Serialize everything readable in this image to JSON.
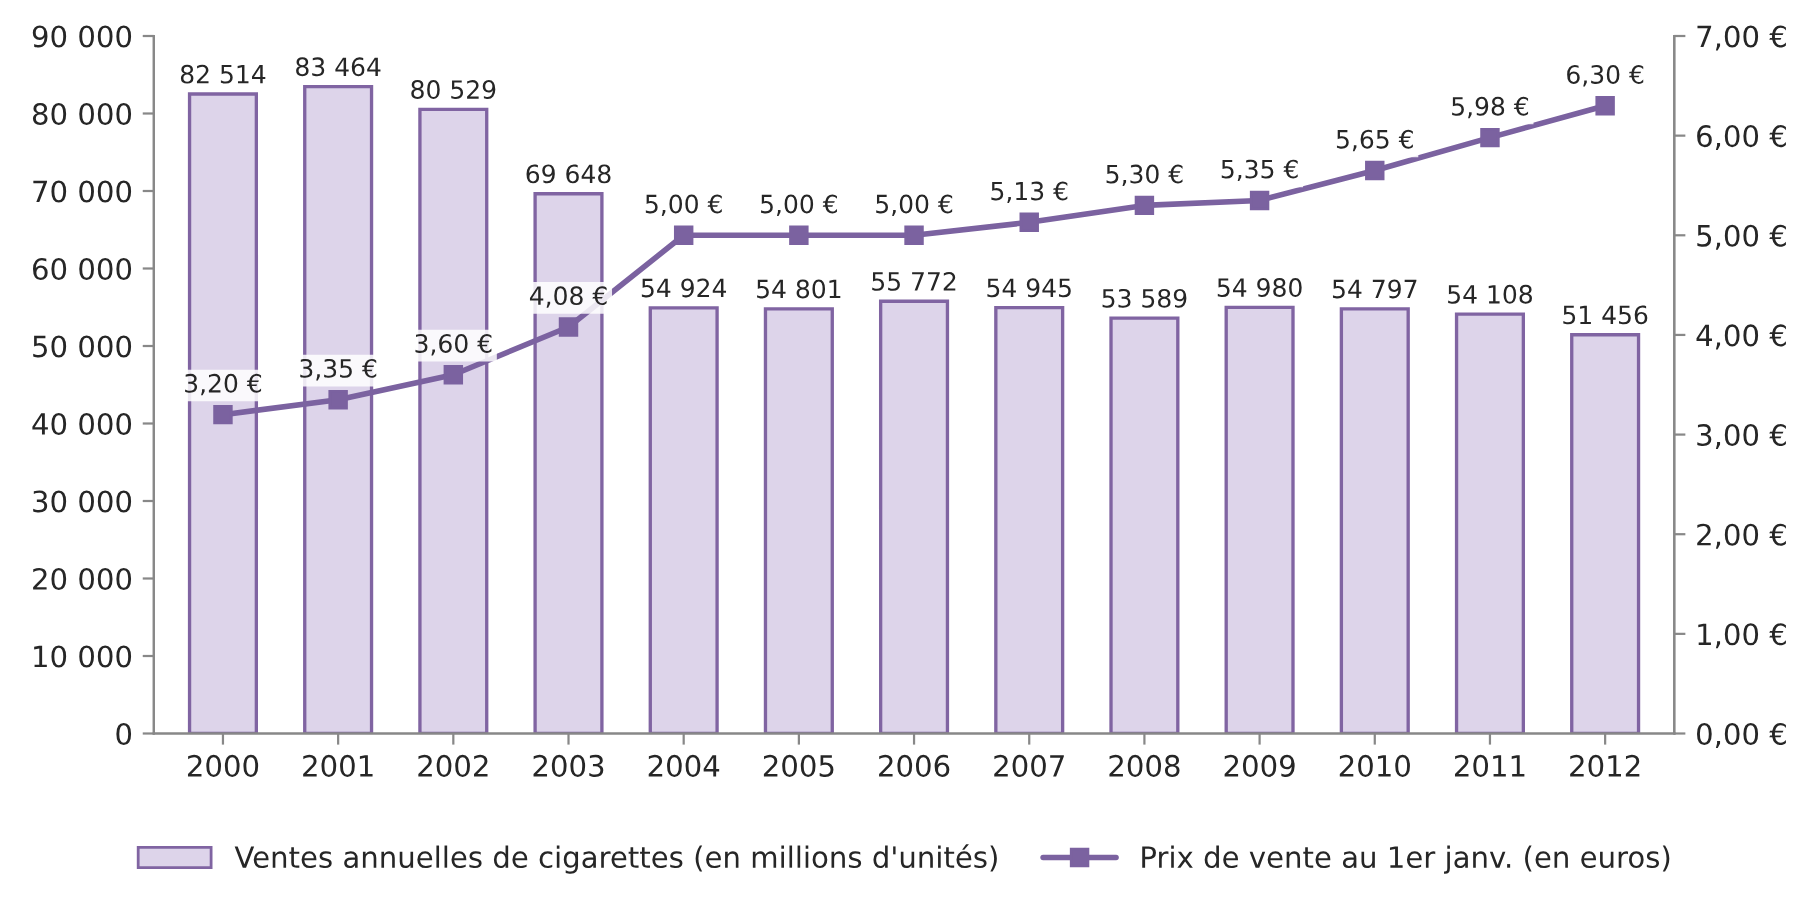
{
  "chart_data": {
    "type": "bar",
    "categories": [
      "2000",
      "2001",
      "2002",
      "2003",
      "2004",
      "2005",
      "2006",
      "2007",
      "2008",
      "2009",
      "2010",
      "2011",
      "2012"
    ],
    "series": [
      {
        "name": "Ventes annuelles de cigarettes (en millions d'unités)",
        "color": "#ddd4ea",
        "values": [
          82514,
          83464,
          80529,
          69648,
          54924,
          54801,
          55772,
          54945,
          53589,
          54980,
          54797,
          54108,
          51456
        ],
        "value_labels": [
          "82 514",
          "83 464",
          "80 529",
          "69 648",
          "54 924",
          "54 801",
          "55 772",
          "54 945",
          "53 589",
          "54 980",
          "54 797",
          "54 108",
          "51 456"
        ]
      },
      {
        "name": "Prix de vente au 1er janv. (en euros)",
        "type": "line",
        "axis": "y2",
        "color": "#7b62a0",
        "marker": "square",
        "line_style": "solid",
        "values": [
          3.2,
          3.35,
          3.6,
          4.08,
          5.0,
          5.0,
          5.0,
          5.13,
          5.3,
          5.35,
          5.65,
          5.98,
          6.3
        ],
        "value_labels": [
          "3,20 €",
          "3,35 €",
          "3,60 €",
          "4,08 €",
          "5,00 €",
          "5,00 €",
          "5,00 €",
          "5,13 €",
          "5,30 €",
          "5,35 €",
          "5,65 €",
          "5,98 €",
          "6,30 €"
        ]
      }
    ],
    "ylim": [
      0,
      90000
    ],
    "yticks": [
      0,
      {
        "value": 10000,
        "label": "10 000"
      },
      {
        "value": 20000,
        "label": "20 000"
      },
      {
        "value": 30000,
        "label": "30 000"
      },
      {
        "value": 40000,
        "label": "40 000"
      },
      {
        "value": 50000,
        "label": "50 000"
      },
      {
        "value": 60000,
        "label": "60 000"
      },
      {
        "value": 70000,
        "label": "70 000"
      },
      {
        "value": 80000,
        "label": "80 000"
      },
      {
        "value": 90000,
        "label": "90 000"
      }
    ],
    "y2lim": [
      0,
      7
    ],
    "y2ticks": [
      {
        "value": 0,
        "label": "0,00 €"
      },
      {
        "value": 1,
        "label": "1,00 €"
      },
      {
        "value": 2,
        "label": "2,00 €"
      },
      {
        "value": 3,
        "label": "3,00 €"
      },
      {
        "value": 4,
        "label": "4,00 €"
      },
      {
        "value": 5,
        "label": "5,00 €"
      },
      {
        "value": 6,
        "label": "6,00 €"
      },
      {
        "value": 7,
        "label": "7,00 €"
      }
    ],
    "grid": false,
    "legend": "bottom"
  }
}
